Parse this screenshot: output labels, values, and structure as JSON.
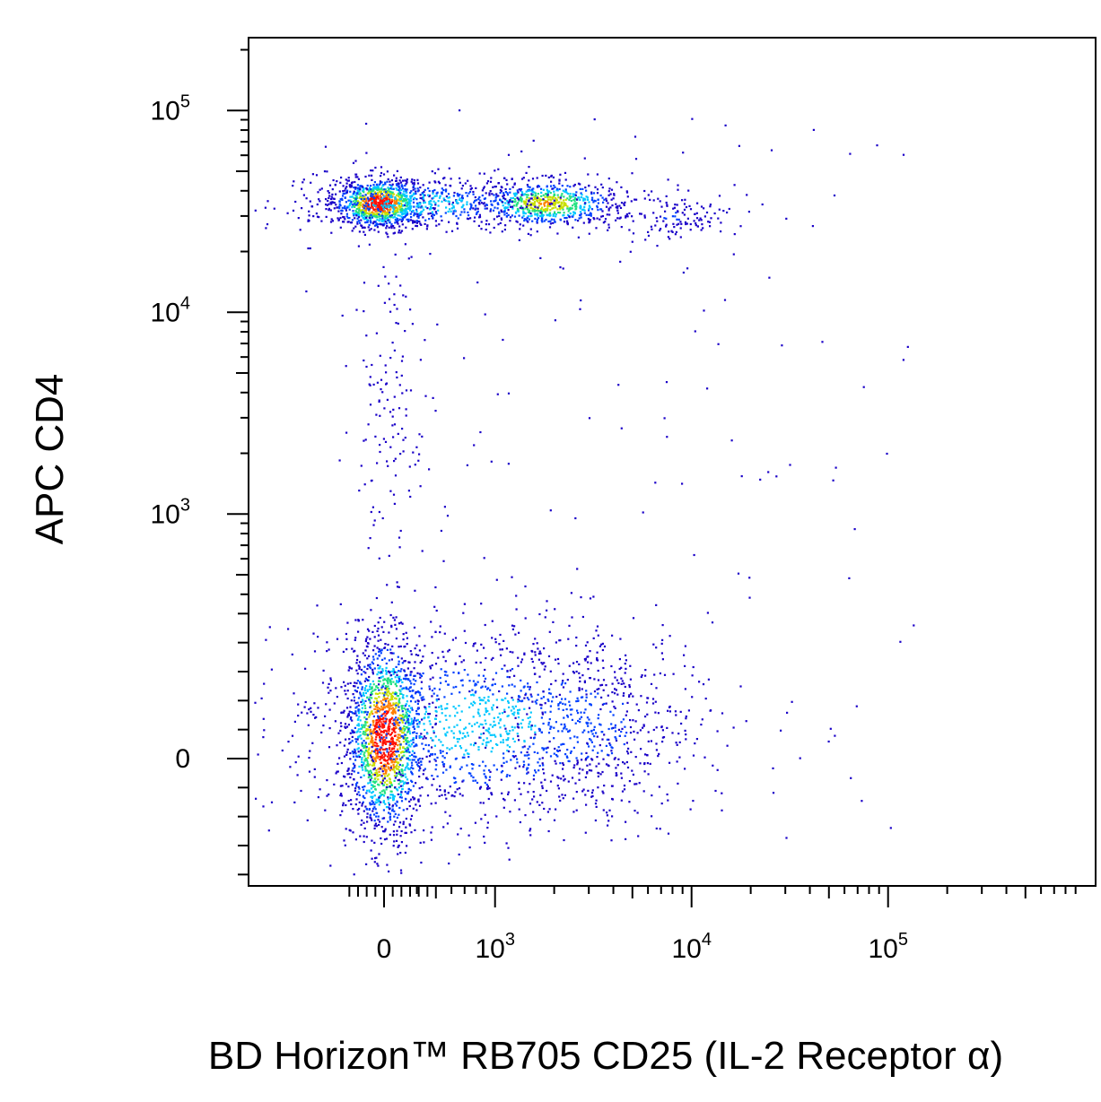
{
  "chart_data": {
    "type": "scatter",
    "title": "",
    "xlabel": "BD Horizon™ RB705 CD25 (IL-2 Receptor α)",
    "ylabel": "APC CD4",
    "x_scale": "biexponential",
    "y_scale": "biexponential",
    "xlim": [
      -220,
      200000
    ],
    "ylim": [
      -150,
      250000
    ],
    "x_ticks": [
      {
        "value": 0,
        "base": "0",
        "exp": ""
      },
      {
        "value": 1000,
        "base": "10",
        "exp": "3"
      },
      {
        "value": 10000,
        "base": "10",
        "exp": "4"
      },
      {
        "value": 100000,
        "base": "10",
        "exp": "5"
      }
    ],
    "y_ticks": [
      {
        "value": 0,
        "base": "0",
        "exp": ""
      },
      {
        "value": 1000,
        "base": "10",
        "exp": "3"
      },
      {
        "value": 10000,
        "base": "10",
        "exp": "4"
      },
      {
        "value": 100000,
        "base": "10",
        "exp": "5"
      }
    ],
    "grid": false,
    "legend": "none",
    "color_scale": [
      "#1a00c8",
      "#0040ff",
      "#00c8ff",
      "#20e080",
      "#c8e000",
      "#ff8000",
      "#ff1000"
    ],
    "populations": [
      {
        "description": "CD4+ CD25- cluster",
        "x_center": -30,
        "y_center": 35000,
        "relative_density": "highest"
      },
      {
        "description": "CD4+ CD25+ cluster",
        "x_center": 1800,
        "y_center": 35000,
        "relative_density": "high"
      },
      {
        "description": "CD4- CD25- cluster",
        "x_center": 0,
        "y_center": 40,
        "relative_density": "highest"
      },
      {
        "description": "CD4- CD25+ diffuse spread",
        "x_center": 800,
        "y_center": 60,
        "relative_density": "medium"
      }
    ]
  }
}
